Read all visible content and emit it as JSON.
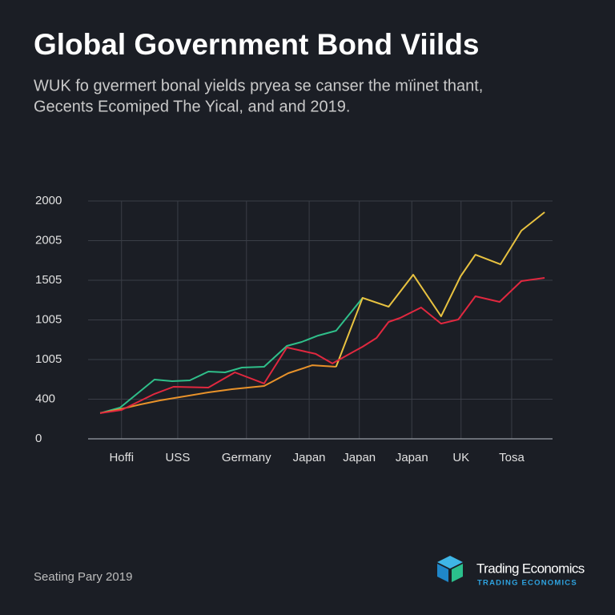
{
  "chart_data": {
    "type": "line",
    "title": "Global Government Bond Viilds",
    "subtitle": [
      "WUK fo gvermert bonal yields pryea se canser the mïinet thant,",
      "Gecents Ecomiped The Yical, and and 2019."
    ],
    "xlim": [
      0,
      100
    ],
    "xticks": [
      {
        "value": 7.2,
        "label": "Hoffi"
      },
      {
        "value": 19.3,
        "label": "USS"
      },
      {
        "value": 34.1,
        "label": "Germany"
      },
      {
        "value": 47.6,
        "label": "Japan"
      },
      {
        "value": 58.4,
        "label": "Japan"
      },
      {
        "value": 69.7,
        "label": "Japan"
      },
      {
        "value": 80.3,
        "label": "UK"
      },
      {
        "value": 91.2,
        "label": "Tosa"
      }
    ],
    "ylim": [
      0,
      2400
    ],
    "yticks": [
      0,
      400,
      {
        "value": 800,
        "label": "1005"
      },
      {
        "value": 1200,
        "label": "1005"
      },
      {
        "value": 1600,
        "label": "1505"
      },
      {
        "value": 2000,
        "label": "2005"
      },
      {
        "value": 2400,
        "label": "2000"
      }
    ],
    "grid": true,
    "series": [
      {
        "color": "#2fbf8a",
        "x": [
          2.6,
          6.9,
          14.3,
          18.1,
          21.9,
          25.9,
          29.5,
          33.1,
          37.9,
          42.8,
          46.0,
          49.5,
          53.4,
          59.1
        ],
        "values": [
          259,
          315,
          598,
          582,
          590,
          679,
          671,
          719,
          727,
          937,
          978,
          1042,
          1091,
          1422
        ]
      },
      {
        "color": "#e8922a",
        "x": [
          2.6,
          6.9,
          11.2,
          15.5,
          20.7,
          25.9,
          31.0,
          37.9,
          43.1,
          48.3,
          53.4
        ],
        "values": [
          259,
          299,
          347,
          388,
          428,
          469,
          501,
          533,
          663,
          743,
          727
        ]
      },
      {
        "color": "#e8c240",
        "x": [
          53.4,
          59.1,
          64.7,
          70.0,
          76.0,
          80.2,
          83.4,
          88.8,
          93.3,
          98.3
        ],
        "values": [
          727,
          1422,
          1333,
          1656,
          1236,
          1640,
          1858,
          1761,
          2101,
          2287
        ]
      },
      {
        "color": "#e0283f",
        "x": [
          2.6,
          7.2,
          14.3,
          18.4,
          25.9,
          31.6,
          37.9,
          42.8,
          49.0,
          52.6,
          56.9,
          59.1,
          62.1,
          64.7,
          67.2,
          71.7,
          76.0,
          79.7,
          83.4,
          88.6,
          93.3,
          98.3
        ],
        "values": [
          259,
          291,
          453,
          525,
          517,
          671,
          558,
          922,
          857,
          760,
          873,
          929,
          1018,
          1180,
          1220,
          1325,
          1163,
          1204,
          1438,
          1382,
          1592,
          1624
        ]
      }
    ],
    "source": "Seating Pary 2019",
    "brand": {
      "name": "Trading Economics",
      "tagline": "TRADING ECONOMICS"
    }
  }
}
